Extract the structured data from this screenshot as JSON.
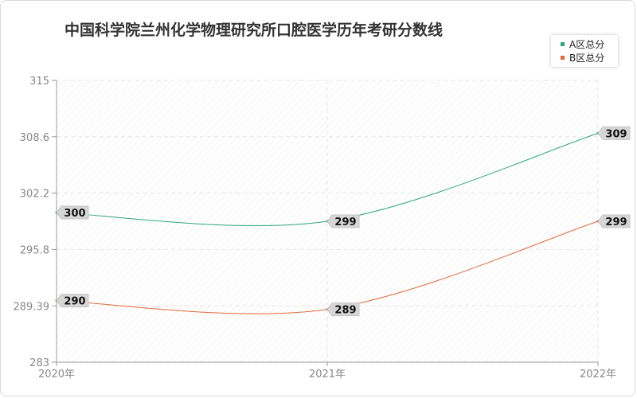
{
  "chart_data": {
    "type": "line",
    "title": "中国科学院兰州化学物理研究所口腔医学历年考研分数线",
    "categories": [
      "2020年",
      "2021年",
      "2022年"
    ],
    "yticks": [
      "283",
      "289.39",
      "295.8",
      "302.2",
      "308.6",
      "315"
    ],
    "ylim": [
      283,
      315
    ],
    "grid": true,
    "legend_position": "top-right",
    "series": [
      {
        "name": "A区总分",
        "color": "#2ca87f",
        "values": [
          300,
          299,
          309
        ]
      },
      {
        "name": "B区总分",
        "color": "#e0693a",
        "values": [
          290,
          289,
          299
        ]
      }
    ]
  }
}
